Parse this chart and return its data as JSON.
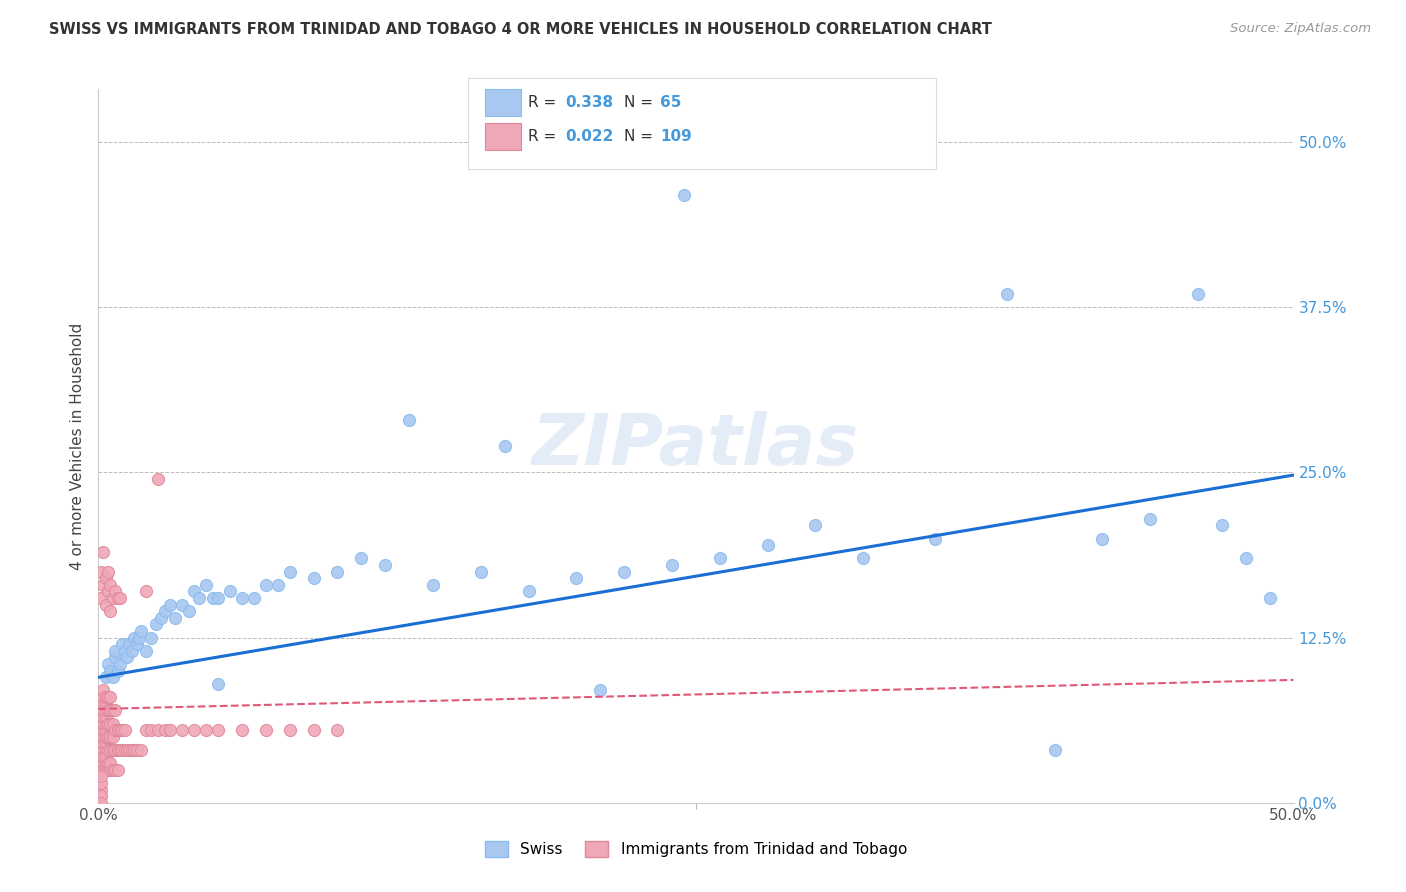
{
  "title": "SWISS VS IMMIGRANTS FROM TRINIDAD AND TOBAGO 4 OR MORE VEHICLES IN HOUSEHOLD CORRELATION CHART",
  "source": "Source: ZipAtlas.com",
  "ylabel_label": "4 or more Vehicles in Household",
  "legend_labels": [
    "Swiss",
    "Immigrants from Trinidad and Tobago"
  ],
  "swiss_R": "0.338",
  "swiss_N": "65",
  "tt_R": "0.022",
  "tt_N": "109",
  "swiss_color": "#a8c8f0",
  "tt_color": "#f0a8b8",
  "swiss_line_color": "#1a6fd4",
  "tt_line_color": "#e05878",
  "right_label_color": "#4499dd",
  "background_color": "#ffffff",
  "grid_color": "#bbbbbb",
  "watermark": "ZIPatlas",
  "xlim": [
    0.0,
    0.5
  ],
  "ylim": [
    0.0,
    0.54
  ],
  "yticks": [
    0.0,
    0.125,
    0.25,
    0.375,
    0.5
  ],
  "ytick_labels": [
    "0.0%",
    "12.5%",
    "25.0%",
    "37.5%",
    "50.0%"
  ],
  "xticks": [
    0.0,
    0.5
  ],
  "xtick_labels": [
    "0.0%",
    "50.0%"
  ],
  "swiss_x": [
    0.003,
    0.004,
    0.005,
    0.006,
    0.007,
    0.007,
    0.008,
    0.009,
    0.01,
    0.011,
    0.012,
    0.013,
    0.014,
    0.015,
    0.016,
    0.017,
    0.018,
    0.02,
    0.022,
    0.024,
    0.026,
    0.028,
    0.03,
    0.032,
    0.035,
    0.038,
    0.04,
    0.042,
    0.045,
    0.048,
    0.05,
    0.055,
    0.06,
    0.065,
    0.07,
    0.075,
    0.08,
    0.09,
    0.1,
    0.11,
    0.12,
    0.14,
    0.16,
    0.18,
    0.2,
    0.22,
    0.24,
    0.245,
    0.26,
    0.28,
    0.3,
    0.32,
    0.35,
    0.38,
    0.42,
    0.44,
    0.46,
    0.47,
    0.48,
    0.49,
    0.4,
    0.05,
    0.13,
    0.17,
    0.21
  ],
  "swiss_y": [
    0.095,
    0.105,
    0.1,
    0.095,
    0.11,
    0.115,
    0.1,
    0.105,
    0.12,
    0.115,
    0.11,
    0.12,
    0.115,
    0.125,
    0.12,
    0.125,
    0.13,
    0.115,
    0.125,
    0.135,
    0.14,
    0.145,
    0.15,
    0.14,
    0.15,
    0.145,
    0.16,
    0.155,
    0.165,
    0.155,
    0.155,
    0.16,
    0.155,
    0.155,
    0.165,
    0.165,
    0.175,
    0.17,
    0.175,
    0.185,
    0.18,
    0.165,
    0.175,
    0.16,
    0.17,
    0.175,
    0.18,
    0.46,
    0.185,
    0.195,
    0.21,
    0.185,
    0.2,
    0.385,
    0.2,
    0.215,
    0.385,
    0.21,
    0.185,
    0.155,
    0.04,
    0.09,
    0.29,
    0.27,
    0.085
  ],
  "tt_x": [
    0.001,
    0.001,
    0.001,
    0.001,
    0.001,
    0.001,
    0.001,
    0.001,
    0.001,
    0.001,
    0.001,
    0.002,
    0.002,
    0.002,
    0.002,
    0.002,
    0.002,
    0.002,
    0.002,
    0.002,
    0.002,
    0.002,
    0.002,
    0.002,
    0.003,
    0.003,
    0.003,
    0.003,
    0.003,
    0.003,
    0.003,
    0.003,
    0.003,
    0.003,
    0.003,
    0.003,
    0.004,
    0.004,
    0.004,
    0.004,
    0.004,
    0.004,
    0.004,
    0.005,
    0.005,
    0.005,
    0.005,
    0.005,
    0.005,
    0.005,
    0.006,
    0.006,
    0.006,
    0.006,
    0.006,
    0.007,
    0.007,
    0.007,
    0.007,
    0.008,
    0.008,
    0.008,
    0.009,
    0.009,
    0.01,
    0.01,
    0.011,
    0.011,
    0.012,
    0.013,
    0.014,
    0.015,
    0.016,
    0.018,
    0.02,
    0.022,
    0.025,
    0.028,
    0.03,
    0.035,
    0.04,
    0.045,
    0.05,
    0.06,
    0.07,
    0.08,
    0.09,
    0.1,
    0.02,
    0.025,
    0.001,
    0.001,
    0.002,
    0.002,
    0.003,
    0.003,
    0.004,
    0.004,
    0.005,
    0.005,
    0.006,
    0.007,
    0.008,
    0.009,
    0.001,
    0.001,
    0.001,
    0.001,
    0.001
  ],
  "tt_y": [
    0.04,
    0.045,
    0.05,
    0.055,
    0.06,
    0.065,
    0.07,
    0.075,
    0.03,
    0.035,
    0.025,
    0.04,
    0.045,
    0.05,
    0.055,
    0.06,
    0.065,
    0.07,
    0.075,
    0.03,
    0.035,
    0.025,
    0.08,
    0.085,
    0.04,
    0.045,
    0.05,
    0.055,
    0.06,
    0.065,
    0.07,
    0.075,
    0.025,
    0.03,
    0.035,
    0.08,
    0.04,
    0.05,
    0.06,
    0.07,
    0.08,
    0.025,
    0.03,
    0.04,
    0.05,
    0.06,
    0.07,
    0.08,
    0.025,
    0.03,
    0.04,
    0.05,
    0.06,
    0.07,
    0.025,
    0.04,
    0.055,
    0.07,
    0.025,
    0.04,
    0.055,
    0.025,
    0.04,
    0.055,
    0.04,
    0.055,
    0.04,
    0.055,
    0.04,
    0.04,
    0.04,
    0.04,
    0.04,
    0.04,
    0.055,
    0.055,
    0.055,
    0.055,
    0.055,
    0.055,
    0.055,
    0.055,
    0.055,
    0.055,
    0.055,
    0.055,
    0.055,
    0.055,
    0.16,
    0.245,
    0.155,
    0.175,
    0.165,
    0.19,
    0.15,
    0.17,
    0.16,
    0.175,
    0.145,
    0.165,
    0.155,
    0.16,
    0.155,
    0.155,
    0.01,
    0.015,
    0.02,
    0.005,
    0.0
  ],
  "swiss_line_x0": 0.0,
  "swiss_line_x1": 0.5,
  "swiss_line_y0": 0.095,
  "swiss_line_y1": 0.248,
  "tt_line_x0": 0.0,
  "tt_line_x1": 0.5,
  "tt_line_y0": 0.071,
  "tt_line_y1": 0.093
}
